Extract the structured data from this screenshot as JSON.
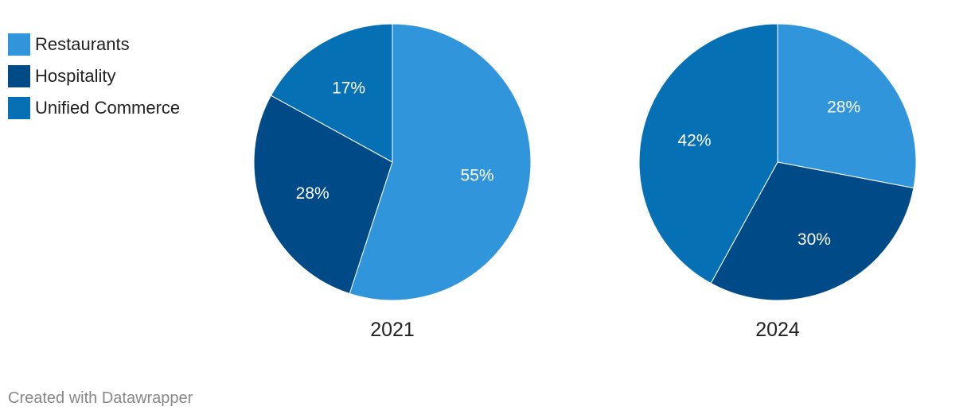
{
  "legend": {
    "items": [
      {
        "label": "Restaurants",
        "color": "#3095db"
      },
      {
        "label": "Hospitality",
        "color": "#004a88"
      },
      {
        "label": "Unified Commerce",
        "color": "#0670b5"
      }
    ]
  },
  "chart_data": [
    {
      "type": "pie",
      "title": "2021",
      "categories": [
        "Restaurants",
        "Hospitality",
        "Unified Commerce"
      ],
      "values": [
        55,
        28,
        17
      ],
      "labels": [
        "55%",
        "28%",
        "17%"
      ],
      "colors": [
        "#3095db",
        "#004a88",
        "#0670b5"
      ],
      "start_angle_deg": 0,
      "direction": "clockwise",
      "legend_position": "top-left"
    },
    {
      "type": "pie",
      "title": "2024",
      "categories": [
        "Restaurants",
        "Hospitality",
        "Unified Commerce"
      ],
      "values": [
        28,
        30,
        42
      ],
      "labels": [
        "28%",
        "30%",
        "42%"
      ],
      "colors": [
        "#3095db",
        "#004a88",
        "#0670b5"
      ],
      "start_angle_deg": 0,
      "direction": "clockwise",
      "legend_position": "top-left"
    }
  ],
  "footer": {
    "credit": "Created with Datawrapper"
  }
}
